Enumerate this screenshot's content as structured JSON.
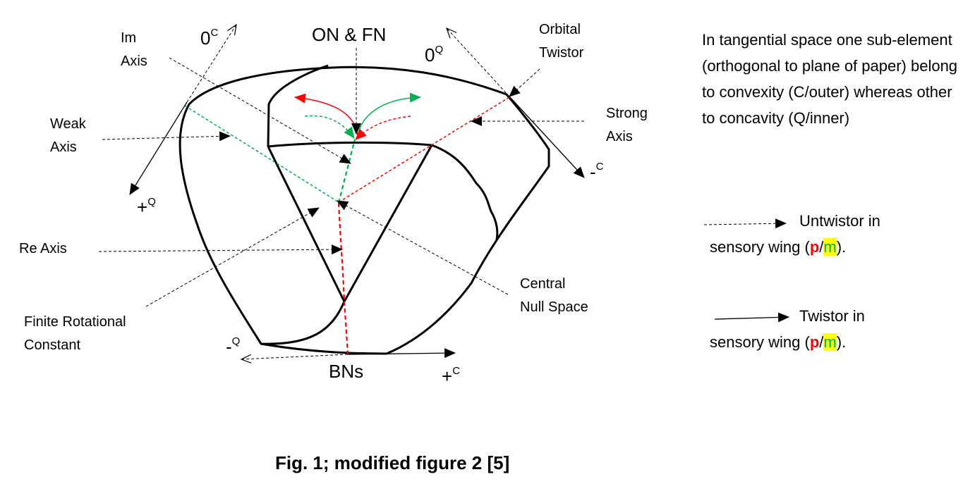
{
  "labels": {
    "im_axis_1": "Im",
    "im_axis_2": "Axis",
    "zero": "0",
    "sup_c": "C",
    "sup_q": "Q",
    "on_fn": "ON & FN",
    "orbital_1": "Orbital",
    "orbital_2": "Twistor",
    "weak_1": "Weak",
    "weak_2": "Axis",
    "strong_1": "Strong",
    "strong_2": "Axis",
    "plus": "+",
    "minus": "-",
    "re_axis": "Re Axis",
    "central_1": "Central",
    "central_2": "Null Space",
    "finite_1": "Finite Rotational",
    "finite_2": "Constant",
    "bns": "BNs"
  },
  "note": "In tangential space one sub-element (orthogonal to plane of paper) belong to convexity (C/outer) whereas other to concavity (Q/inner)",
  "legend": {
    "untwistor_1": "Untwistor in",
    "twistor_1": "Twistor in",
    "wing_prefix": "sensory wing (",
    "p": "p",
    "slash": "/",
    "m": "m",
    "wing_suffix": ")."
  },
  "caption": "Fig. 1; modified figure 2 [5]",
  "colors": {
    "red": "#ff0000",
    "green": "#00b050",
    "highlight": "#ffff00",
    "ink": "#000000"
  }
}
